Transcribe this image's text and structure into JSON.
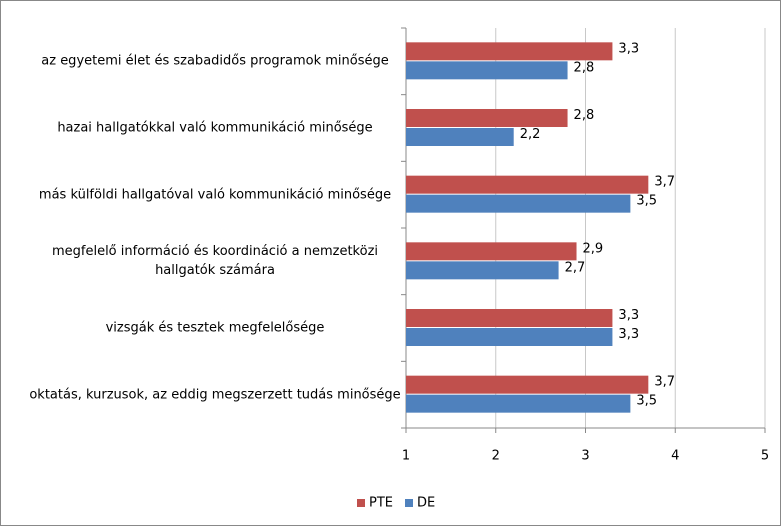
{
  "chart_data": {
    "type": "hbar",
    "categories": [
      "az egyetemi élet és szabadidős programok minősége",
      "hazai hallgatókkal való kommunikáció minősége",
      "más külföldi hallgatóval való kommunikáció minősége",
      "megfelelő információ és koordináció a nemzetközi hallgatók számára",
      "vizsgák és tesztek megfelelősége",
      "oktatás, kurzusok, az eddig megszerzett tudás minősége"
    ],
    "series": [
      {
        "name": "PTE",
        "color": "#c0504d",
        "values": [
          3.3,
          2.8,
          3.7,
          2.9,
          3.3,
          3.7
        ],
        "value_labels": [
          "3,3",
          "2,8",
          "3,7",
          "2,9",
          "3,3",
          "3,7"
        ]
      },
      {
        "name": "DE",
        "color": "#4f81bd",
        "values": [
          2.8,
          2.2,
          3.5,
          2.7,
          3.3,
          3.5
        ],
        "value_labels": [
          "2,8",
          "2,2",
          "3,5",
          "2,7",
          "3,3",
          "3,5"
        ]
      }
    ],
    "xlim": [
      1,
      5
    ],
    "xticks": [
      1,
      2,
      3,
      4,
      5
    ],
    "grid": true,
    "legend": "bottom"
  }
}
